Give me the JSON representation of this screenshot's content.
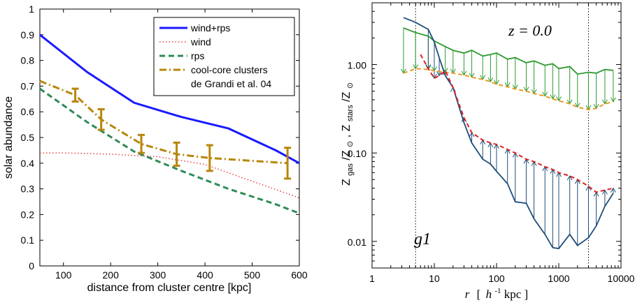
{
  "chart_data": [
    {
      "type": "line",
      "xlabel": "distance from cluster centre [kpc]",
      "ylabel": "solar abundance",
      "xlim": [
        50,
        600
      ],
      "ylim": [
        0,
        1
      ],
      "xticks": [
        "100",
        "200",
        "300",
        "400",
        "500",
        "600"
      ],
      "yticks": [
        "0",
        "0.1",
        "0.2",
        "0.3",
        "0.4",
        "0.5",
        "0.6",
        "0.7",
        "0.8",
        "0.9",
        "1"
      ],
      "legend_position": "top-right",
      "series": [
        {
          "name": "wind+rps",
          "color": "#1a1aff",
          "style": "solid",
          "x": [
            50,
            150,
            250,
            350,
            450,
            550,
            600
          ],
          "y": [
            0.9,
            0.755,
            0.635,
            0.58,
            0.535,
            0.45,
            0.4
          ]
        },
        {
          "name": "wind",
          "color": "#e84040",
          "style": "dotted",
          "x": [
            50,
            100,
            200,
            300,
            400,
            500,
            600
          ],
          "y": [
            0.44,
            0.44,
            0.435,
            0.425,
            0.395,
            0.33,
            0.265
          ]
        },
        {
          "name": "rps",
          "color": "#2e8b57",
          "style": "dashed",
          "x": [
            50,
            150,
            250,
            350,
            450,
            550,
            600
          ],
          "y": [
            0.69,
            0.56,
            0.445,
            0.37,
            0.3,
            0.24,
            0.205
          ]
        },
        {
          "name": "cool-core clusters",
          "name2": "de Grandi et al. 04",
          "color": "#b8860b",
          "style": "dashdot",
          "x": [
            50,
            125,
            180,
            265,
            340,
            410,
            575
          ],
          "y": [
            0.72,
            0.665,
            0.57,
            0.475,
            0.435,
            0.42,
            0.4
          ],
          "err_x": [
            125,
            180,
            265,
            340,
            410,
            575
          ],
          "err_y": [
            0.665,
            0.57,
            0.475,
            0.435,
            0.42,
            0.4
          ],
          "err_lo": [
            0.64,
            0.53,
            0.44,
            0.39,
            0.37,
            0.34
          ],
          "err_hi": [
            0.69,
            0.61,
            0.51,
            0.48,
            0.47,
            0.46
          ]
        }
      ]
    },
    {
      "type": "line",
      "xscale": "log",
      "yscale": "log",
      "xlim": [
        1,
        10000
      ],
      "ylim": [
        0.005,
        5
      ],
      "xticks": [
        "1",
        "10",
        "100",
        "1000",
        "10000"
      ],
      "yticks": [
        "0.01",
        "0.10",
        "1.00"
      ],
      "xlabel_italic": "r",
      "xlabel_rest": "[",
      "xlabel_unit_h": "h",
      "xlabel_unit_sup": "-1",
      "xlabel_unit_tail": "kpc ]",
      "ylabel": "Z_gas/Z_⊙, Z_stars/Z_⊙",
      "ylabel_parts": [
        "Z",
        "gas",
        " /Z",
        "⊙",
        ", Z",
        "stars",
        " /Z",
        "⊙"
      ],
      "annotation_redshift": "z = 0.0",
      "annotation_galaxy": "g1",
      "vlines_x": [
        5,
        3000
      ],
      "series": [
        {
          "name": "stars_top",
          "color": "#2e9a2e",
          "style": "solid",
          "x": [
            3.2,
            5,
            8,
            10,
            15,
            20,
            30,
            40,
            60,
            80,
            100,
            150,
            200,
            300,
            400,
            600,
            800,
            1000,
            1500,
            2000,
            3000,
            4000,
            5500,
            7500
          ],
          "y": [
            2.6,
            2.3,
            2.1,
            1.85,
            1.6,
            1.45,
            1.35,
            1.45,
            1.25,
            1.3,
            1.35,
            1.15,
            1.2,
            1.05,
            1.1,
            0.98,
            1.02,
            0.9,
            0.95,
            0.78,
            0.82,
            0.8,
            0.88,
            0.86
          ]
        },
        {
          "name": "stars_bottom",
          "color": "#e89a20",
          "style": "dashed",
          "x": [
            3.2,
            5,
            8,
            10,
            15,
            20,
            30,
            40,
            60,
            80,
            100,
            150,
            200,
            300,
            400,
            600,
            800,
            1000,
            1500,
            2000,
            3000,
            4000,
            5500,
            7500
          ],
          "y": [
            0.8,
            0.9,
            0.88,
            0.85,
            0.82,
            0.8,
            0.76,
            0.72,
            0.68,
            0.64,
            0.6,
            0.56,
            0.53,
            0.5,
            0.47,
            0.44,
            0.41,
            0.39,
            0.36,
            0.33,
            0.31,
            0.32,
            0.36,
            0.38
          ]
        },
        {
          "name": "gas_solid",
          "color": "#1f4e79",
          "style": "solid",
          "x": [
            3.2,
            5,
            8,
            10,
            12,
            15,
            20,
            30,
            40,
            60,
            80,
            100,
            150,
            200,
            300,
            400,
            600,
            800,
            1000,
            1500,
            2000,
            3000,
            4000,
            5500,
            7500
          ],
          "y": [
            3.4,
            3.0,
            2.5,
            1.8,
            1.2,
            0.75,
            0.55,
            0.22,
            0.13,
            0.085,
            0.075,
            0.062,
            0.045,
            0.028,
            0.027,
            0.018,
            0.012,
            0.0085,
            0.0083,
            0.012,
            0.009,
            0.011,
            0.015,
            0.025,
            0.035
          ]
        },
        {
          "name": "gas_dashed",
          "color": "#dd2222",
          "style": "dashed",
          "x": [
            6,
            8,
            10,
            12,
            15,
            20,
            30,
            40,
            60,
            80,
            100,
            150,
            200,
            300,
            400,
            600,
            800,
            1000,
            1500,
            2000,
            3000,
            4000,
            5500,
            7500
          ],
          "y": [
            1.3,
            0.9,
            0.7,
            0.75,
            0.85,
            0.55,
            0.25,
            0.17,
            0.14,
            0.13,
            0.125,
            0.11,
            0.1,
            0.085,
            0.08,
            0.07,
            0.065,
            0.06,
            0.055,
            0.05,
            0.042,
            0.036,
            0.038,
            0.04
          ]
        }
      ]
    }
  ]
}
